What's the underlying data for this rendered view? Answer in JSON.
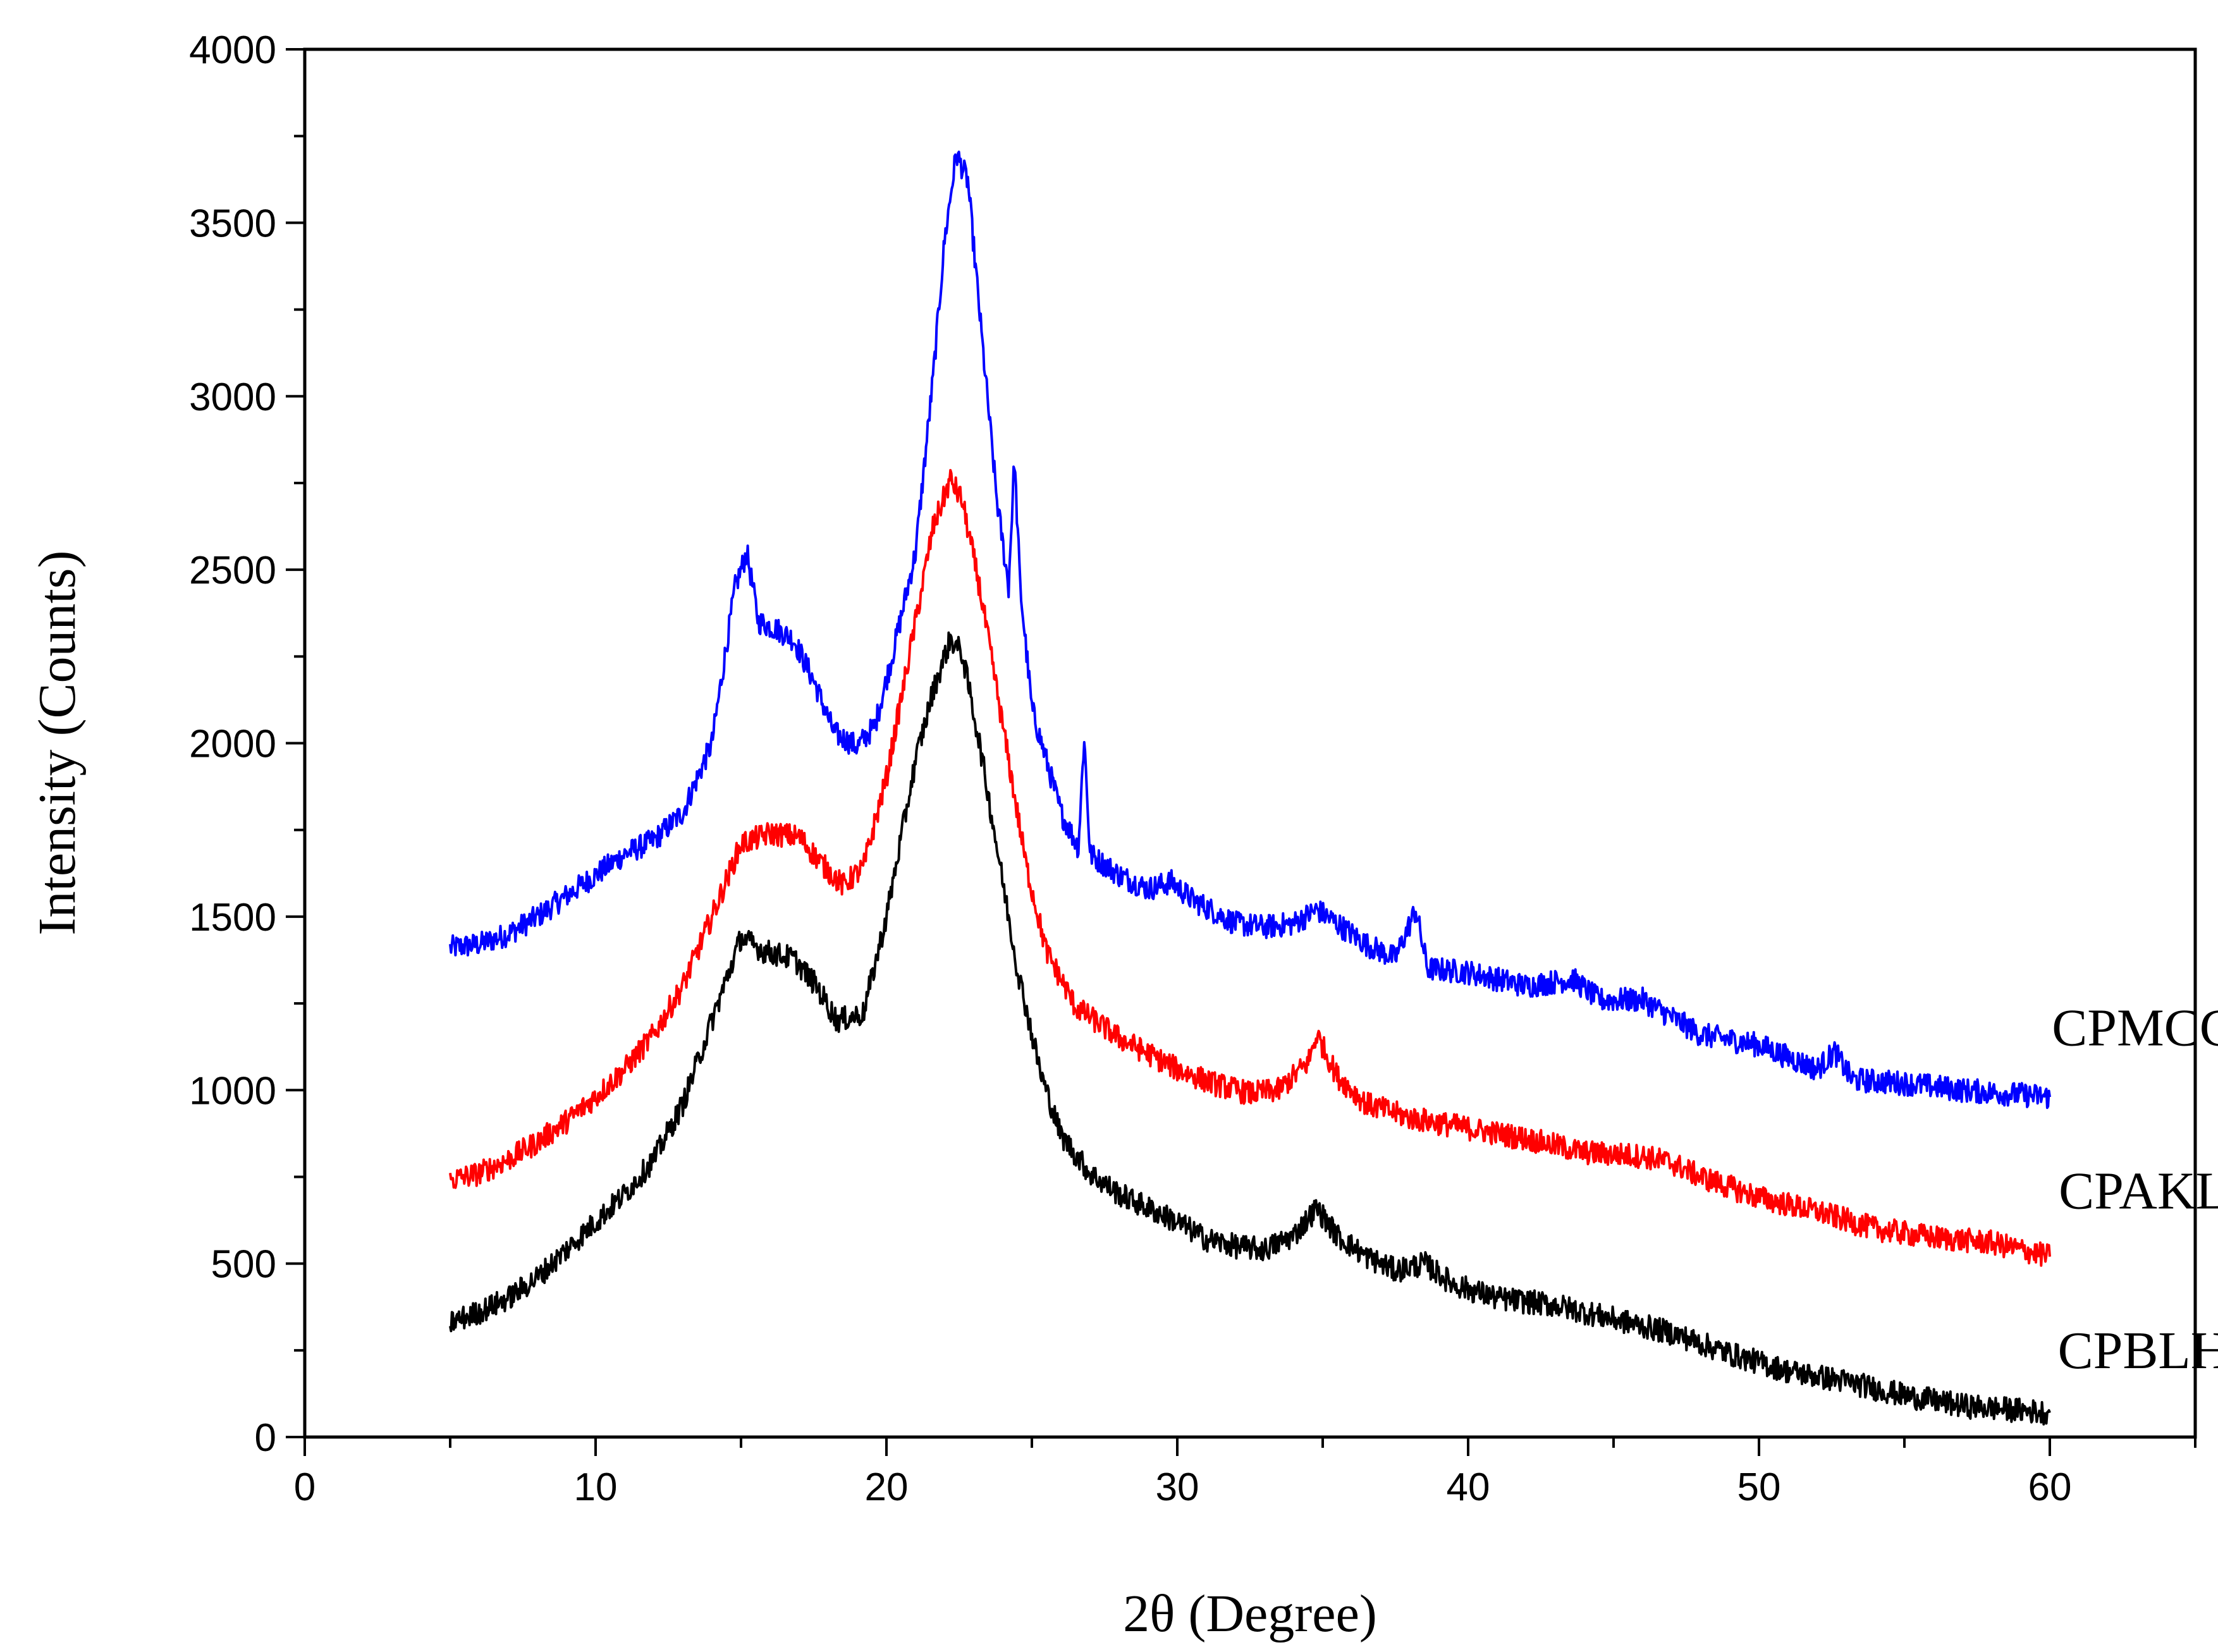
{
  "chart_data": {
    "type": "line",
    "title": "",
    "xlabel": "2θ (Degree)",
    "ylabel": "Intensity (Counts)",
    "xlim": [
      0,
      65
    ],
    "ylim": [
      0,
      4000
    ],
    "x_ticks": [
      "0",
      "10",
      "20",
      "30",
      "40",
      "50",
      "60"
    ],
    "y_ticks": [
      "0",
      "500",
      "1000",
      "1500",
      "2000",
      "2500",
      "3000",
      "3500",
      "4000"
    ],
    "grid": false,
    "series": [
      {
        "name": "CPMCC",
        "color": "#0000ff",
        "x": [
          5,
          6,
          7,
          8,
          9,
          10,
          11,
          12,
          13,
          14,
          14.8,
          15.2,
          15.6,
          16.2,
          16.8,
          17.5,
          18.2,
          19,
          19.6,
          20.2,
          21,
          21.6,
          22,
          22.4,
          22.8,
          23.3,
          23.8,
          24.2,
          24.4,
          24.6,
          25,
          25.5,
          26,
          26.6,
          26.8,
          27,
          28,
          29,
          29.8,
          30.5,
          32,
          33,
          34,
          34.8,
          35.5,
          36.5,
          37.5,
          38.2,
          38.6,
          40,
          42,
          43.6,
          44.5,
          46,
          48,
          50,
          52,
          52.6,
          53.2,
          55,
          57,
          60
        ],
        "values": [
          1410,
          1420,
          1450,
          1500,
          1560,
          1620,
          1680,
          1720,
          1800,
          2000,
          2450,
          2550,
          2350,
          2330,
          2300,
          2180,
          2030,
          1990,
          2050,
          2250,
          2550,
          3050,
          3450,
          3700,
          3620,
          3150,
          2700,
          2450,
          2820,
          2450,
          2100,
          1950,
          1800,
          1700,
          2020,
          1680,
          1620,
          1580,
          1600,
          1550,
          1480,
          1470,
          1480,
          1520,
          1480,
          1420,
          1380,
          1520,
          1350,
          1340,
          1300,
          1320,
          1260,
          1260,
          1160,
          1130,
          1060,
          1110,
          1030,
          1020,
          1000,
          980
        ]
      },
      {
        "name": "CPAKL",
        "color": "#ff0000",
        "x": [
          5,
          6,
          7,
          8,
          9,
          10,
          11,
          12,
          13,
          14,
          15,
          16,
          17,
          17.8,
          18.5,
          19.2,
          20,
          21,
          21.6,
          22.2,
          22.6,
          23.2,
          24,
          24.8,
          25.5,
          26.5,
          28,
          30,
          31.2,
          32.5,
          33.5,
          34.5,
          34.8,
          35.5,
          36.5,
          38,
          40,
          42,
          44,
          46,
          47,
          48,
          50,
          52,
          54,
          56,
          58,
          60
        ],
        "values": [
          740,
          760,
          800,
          850,
          910,
          980,
          1060,
          1160,
          1300,
          1500,
          1710,
          1740,
          1730,
          1650,
          1590,
          1640,
          1900,
          2350,
          2620,
          2760,
          2700,
          2450,
          2050,
          1650,
          1400,
          1240,
          1150,
          1060,
          1020,
          990,
          1000,
          1080,
          1160,
          1040,
          960,
          920,
          890,
          860,
          820,
          810,
          790,
          750,
          690,
          650,
          600,
          575,
          560,
          520
        ]
      },
      {
        "name": "CPBLH",
        "color": "#000000",
        "x": [
          5,
          6,
          7,
          8,
          9,
          10,
          11,
          12,
          13,
          14,
          15,
          15.8,
          16.8,
          17.6,
          18.3,
          19.2,
          20,
          21,
          21.6,
          22.2,
          22.6,
          23.2,
          23.8,
          24.5,
          25.3,
          26,
          27,
          28,
          29,
          30,
          31,
          32,
          33,
          34,
          34.8,
          35.5,
          36.5,
          37.5,
          38.5,
          39.5,
          41,
          43,
          45,
          47,
          49,
          51,
          53,
          55,
          57,
          60
        ],
        "values": [
          330,
          360,
          400,
          460,
          540,
          620,
          700,
          800,
          960,
          1200,
          1440,
          1400,
          1380,
          1300,
          1200,
          1220,
          1500,
          1950,
          2150,
          2300,
          2260,
          2000,
          1700,
          1350,
          1050,
          870,
          760,
          700,
          660,
          620,
          570,
          550,
          540,
          580,
          660,
          580,
          520,
          480,
          500,
          440,
          400,
          380,
          340,
          300,
          240,
          190,
          160,
          120,
          90,
          70
        ]
      }
    ]
  }
}
